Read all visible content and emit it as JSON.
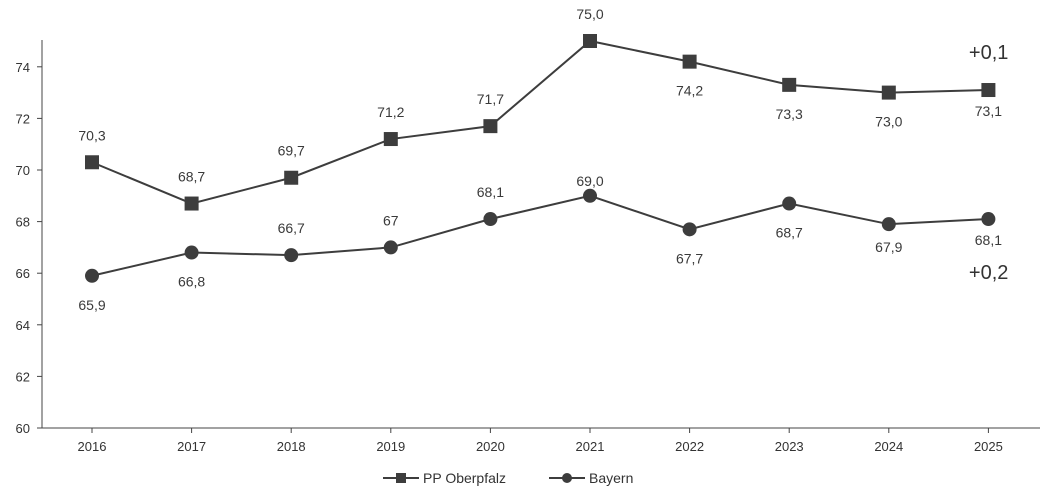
{
  "chart_data": {
    "type": "line",
    "title": "",
    "xlabel": "",
    "ylabel": "",
    "categories": [
      "2016",
      "2017",
      "2018",
      "2019",
      "2020",
      "2021",
      "2022",
      "2023",
      "2024",
      "2025"
    ],
    "ylim": [
      60,
      75
    ],
    "yticks": [
      60,
      62,
      64,
      66,
      68,
      70,
      72,
      74
    ],
    "grid": false,
    "legend_position": "bottom",
    "series": [
      {
        "name": "PP Oberpfalz",
        "marker": "square",
        "color": "#3d3d3d",
        "values": [
          70.3,
          68.7,
          69.7,
          71.2,
          71.7,
          75.0,
          74.2,
          73.3,
          73.0,
          73.1
        ],
        "labels": [
          "70,3",
          "68,7",
          "69,7",
          "71,2",
          "71,7",
          "75,0",
          "74,2",
          "73,3",
          "73,0",
          "73,1"
        ],
        "change_label": "+0,1"
      },
      {
        "name": "Bayern",
        "marker": "circle",
        "color": "#3d3d3d",
        "values": [
          65.9,
          66.8,
          66.7,
          67.0,
          68.1,
          69.0,
          67.7,
          68.7,
          67.9,
          68.1
        ],
        "labels": [
          "65,9",
          "66,8",
          "66,7",
          "67",
          "68,1",
          "69,0",
          "67,7",
          "68,7",
          "67,9",
          "68,1"
        ],
        "change_label": "+0,2"
      }
    ]
  }
}
